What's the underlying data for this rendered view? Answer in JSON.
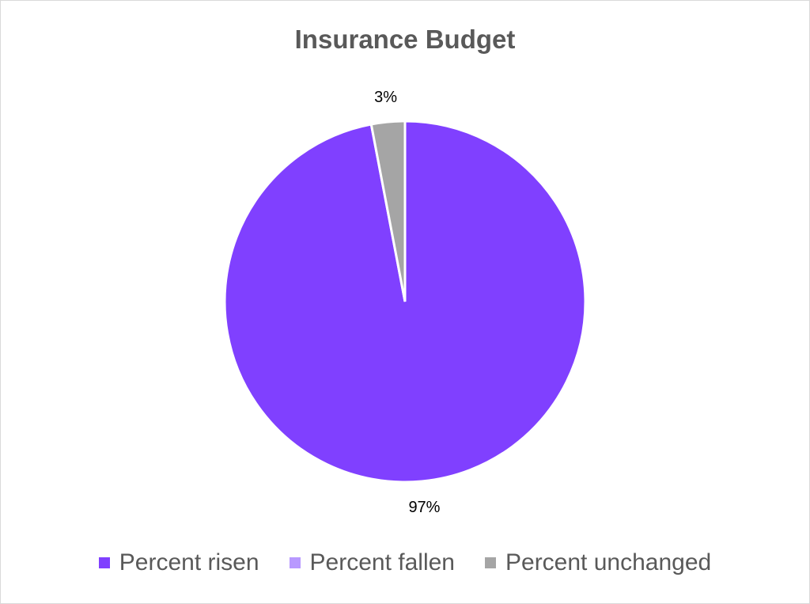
{
  "chart_data": {
    "type": "pie",
    "title": "Insurance Budget",
    "categories": [
      "Percent risen",
      "Percent fallen",
      "Percent unchanged"
    ],
    "values": [
      97,
      0,
      3
    ],
    "data_labels": [
      "97%",
      "",
      "3%"
    ],
    "colors": [
      "#8040FF",
      "#B899FF",
      "#A5A5A5"
    ],
    "start_angle_deg": 0,
    "direction": "clockwise",
    "legend_position": "bottom"
  }
}
